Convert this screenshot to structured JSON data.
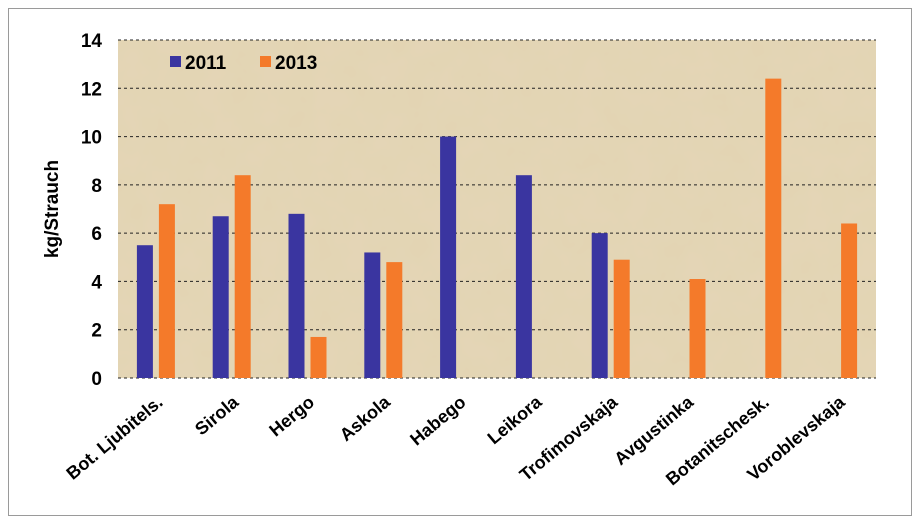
{
  "chart_data": {
    "type": "bar",
    "title": "",
    "xlabel": "",
    "ylabel": "kg/Strauch",
    "ylim": [
      0,
      14
    ],
    "yticks": [
      0,
      2,
      4,
      6,
      8,
      10,
      12,
      14
    ],
    "grid": true,
    "legend_position": "top-left",
    "categories": [
      "Bot. Ljubitels.",
      "Sirola",
      "Hergo",
      "Askola",
      "Habego",
      "Leikora",
      "Trofimovskaja",
      "Avgustinka",
      "Botanitschesk.",
      "Voroblevskaja"
    ],
    "series": [
      {
        "name": "2011",
        "color": "#3a35a0",
        "values": [
          5.5,
          6.7,
          6.8,
          5.2,
          10.0,
          8.4,
          6.0,
          null,
          null,
          null
        ]
      },
      {
        "name": "2013",
        "color": "#f47a2a",
        "values": [
          7.2,
          8.4,
          1.7,
          4.8,
          null,
          null,
          4.9,
          4.1,
          12.4,
          6.4
        ]
      }
    ]
  }
}
